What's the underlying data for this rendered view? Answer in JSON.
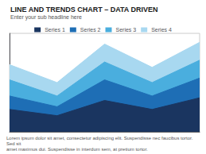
{
  "chart_data": {
    "type": "area",
    "title": "LINE AND TRENDS CHART – DATA DRIVEN",
    "subtitle": "Enter your sub headline here",
    "annotations": [
      "Lorem ipsum dolor sit amet, consectetur adipiscing elit. Suspendisse nec faucibus tortor. Sed sit\namet maximus dui. Suspendisse in interdum sem, at pretium tortor."
    ],
    "x": [
      0,
      1,
      2,
      3,
      4
    ],
    "series": [
      {
        "name": "Series 1",
        "color": "#1a3560",
        "values": [
          2.5,
          1.8,
          3.5,
          2.5,
          3.8
        ]
      },
      {
        "name": "Series 2",
        "color": "#1e6eb5",
        "values": [
          4.0,
          2.8,
          5.8,
          4.0,
          6.0
        ]
      },
      {
        "name": "Series 3",
        "color": "#4aaede",
        "values": [
          5.8,
          4.0,
          7.8,
          5.5,
          8.0
        ]
      },
      {
        "name": "Series 4",
        "color": "#a8d8f0",
        "values": [
          7.5,
          5.5,
          9.8,
          7.2,
          10.0
        ]
      }
    ],
    "xlim": [
      0,
      4
    ],
    "ylim": [
      0,
      11
    ],
    "stacked": false,
    "grid": false,
    "tick_labels": false,
    "legend": "upper center"
  }
}
